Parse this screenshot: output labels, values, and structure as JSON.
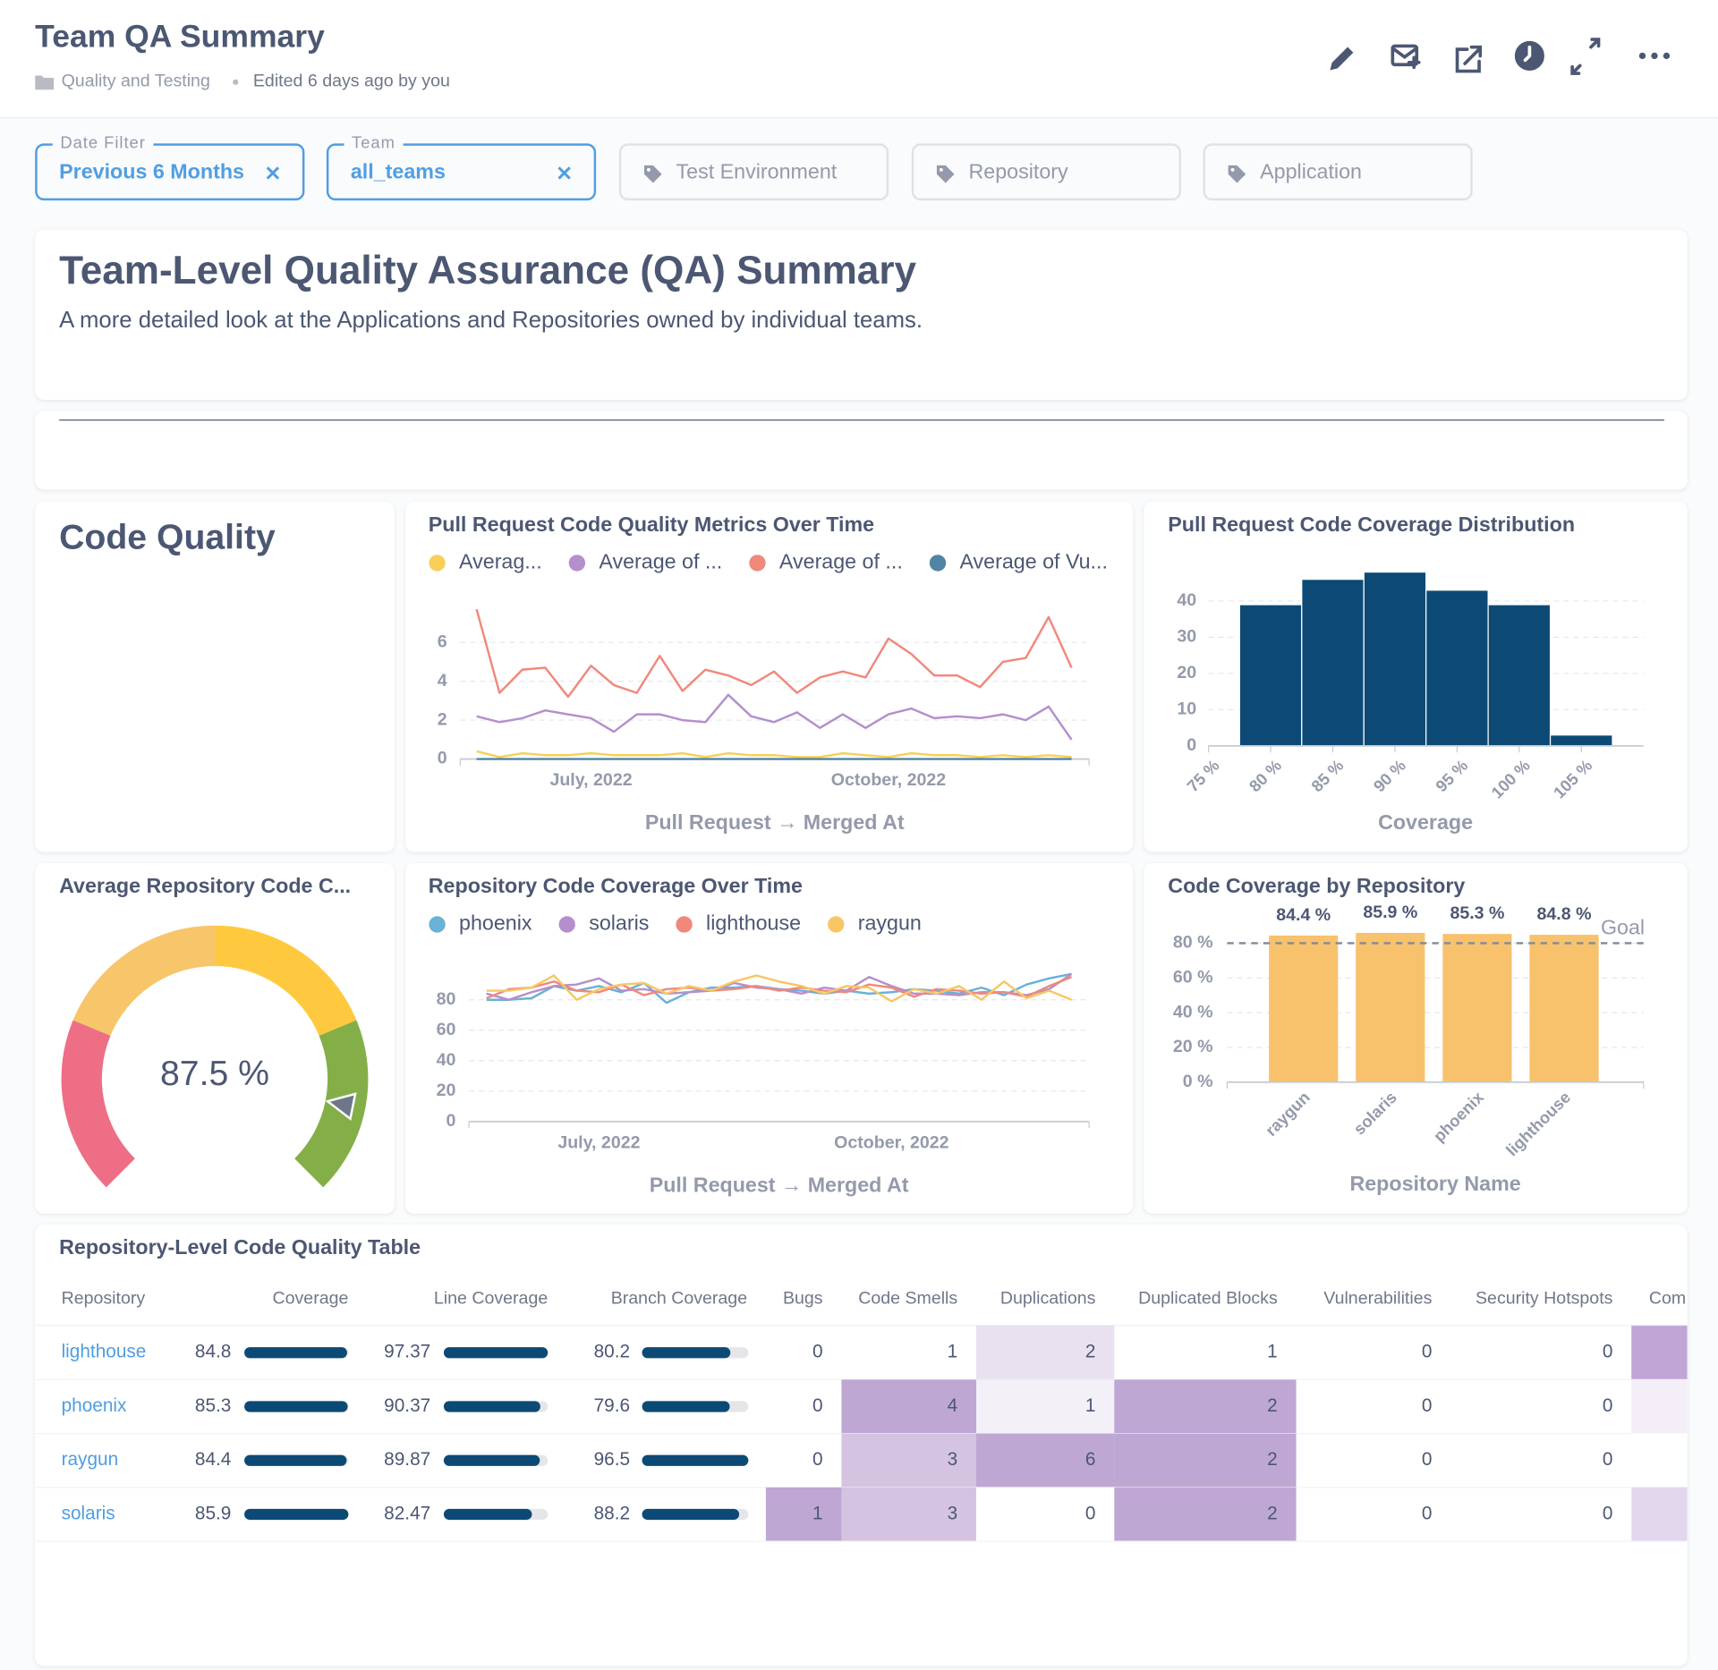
{
  "header": {
    "title": "Team QA Summary",
    "collection": "Quality and Testing",
    "edited": "Edited 6 days ago by you"
  },
  "filters": [
    {
      "label": "Date Filter",
      "value": "Previous 6 Months"
    },
    {
      "label": "Team",
      "value": "all_teams"
    },
    {
      "placeholder": "Test Environment"
    },
    {
      "placeholder": "Repository"
    },
    {
      "placeholder": "Application"
    }
  ],
  "intro": {
    "title": "Team-Level Quality Assurance (QA) Summary",
    "description": "A more detailed look at the Applications and Repositories owned by individual teams."
  },
  "section_title": "Code Quality",
  "chart_data": [
    {
      "type": "line",
      "title": "Pull Request Code Quality Metrics Over Time",
      "x_label": "Pull Request → Merged At",
      "categories": [
        null,
        null,
        null,
        null,
        null,
        "July, 2022",
        null,
        null,
        null,
        null,
        null,
        null,
        null,
        null,
        null,
        null,
        null,
        null,
        "October, 2022",
        null,
        null,
        null,
        null,
        null,
        null,
        null,
        null
      ],
      "ylim": [
        0,
        8
      ],
      "yticks": [
        0,
        2,
        4,
        6
      ],
      "grid": true,
      "series": [
        {
          "name": "Averag...",
          "color": "#f9cf5a",
          "values": [
            0.4,
            0.1,
            0.3,
            0.2,
            0.2,
            0.3,
            0.2,
            0.2,
            0.2,
            0.3,
            0.1,
            0.3,
            0.2,
            0.2,
            0.1,
            0.1,
            0.3,
            0.2,
            0.1,
            0.3,
            0.2,
            0.2,
            0.1,
            0.2,
            0.1,
            0.2,
            0.1
          ]
        },
        {
          "name": "Average of ...",
          "color": "#b48fcc",
          "values": [
            2.2,
            1.9,
            2.1,
            2.5,
            2.3,
            2.1,
            1.4,
            2.3,
            2.3,
            2.0,
            1.9,
            3.3,
            2.2,
            1.9,
            2.4,
            1.6,
            2.3,
            1.6,
            2.3,
            2.6,
            2.1,
            2.2,
            2.1,
            2.3,
            2.0,
            2.7,
            1.0
          ]
        },
        {
          "name": "Average of ...",
          "color": "#f1887c",
          "values": [
            7.7,
            3.4,
            4.6,
            4.7,
            3.2,
            4.8,
            3.8,
            3.4,
            5.3,
            3.5,
            4.6,
            4.3,
            3.8,
            4.5,
            3.4,
            4.2,
            4.5,
            4.2,
            6.2,
            5.4,
            4.3,
            4.3,
            3.7,
            5.0,
            5.2,
            7.3,
            4.7
          ]
        },
        {
          "name": "Average of Vu...",
          "color": "#4f85a3",
          "values": [
            0,
            0,
            0,
            0,
            0,
            0,
            0,
            0,
            0,
            0,
            0,
            0,
            0,
            0,
            0,
            0,
            0,
            0,
            0,
            0,
            0,
            0,
            0,
            0,
            0,
            0,
            0
          ]
        }
      ]
    },
    {
      "type": "histogram",
      "title": "Pull Request Code Coverage Distribution",
      "x_label": "Coverage",
      "bins": [
        77.5,
        82.5,
        87.5,
        92.5,
        97.5,
        102.5,
        107.5
      ],
      "values": [
        39,
        46,
        48,
        43,
        39,
        3
      ],
      "color": "#0c4a75",
      "xlim": [
        75,
        110
      ],
      "xticks": [
        {
          "value": 75,
          "label": "75 %"
        },
        {
          "value": 80,
          "label": "80 %"
        },
        {
          "value": 85,
          "label": "85 %"
        },
        {
          "value": 90,
          "label": "90 %"
        },
        {
          "value": 95,
          "label": "95 %"
        },
        {
          "value": 100,
          "label": "100 %"
        },
        {
          "value": 105,
          "label": "105 %"
        }
      ],
      "ylim": [
        0,
        49
      ],
      "yticks": [
        0,
        10,
        20,
        30,
        40
      ],
      "grid": true
    },
    {
      "type": "gauge",
      "title": "Average Repository Code C...",
      "value": 87.5,
      "value_label": "87.5 %",
      "segments": [
        {
          "min": 0,
          "max": 25,
          "color": "#ed6e85"
        },
        {
          "min": 25,
          "max": 50,
          "color": "#f7c56a"
        },
        {
          "min": 50,
          "max": 75,
          "color": "#ffc93f"
        },
        {
          "min": 75,
          "max": 100,
          "color": "#84af48"
        }
      ]
    },
    {
      "type": "line",
      "title": "Repository Code Coverage Over Time",
      "x_label": "Pull Request → Merged At",
      "categories": [
        null,
        null,
        null,
        null,
        null,
        "July, 2022",
        null,
        null,
        null,
        null,
        null,
        null,
        null,
        null,
        null,
        null,
        null,
        null,
        "October, 2022",
        null,
        null,
        null,
        null,
        null,
        null,
        null,
        null
      ],
      "ylim": [
        0,
        100
      ],
      "yticks": [
        0,
        20,
        40,
        60,
        80
      ],
      "grid": true,
      "series": [
        {
          "name": "phoenix",
          "color": "#69b1d6",
          "values": [
            80,
            80,
            81,
            89,
            86,
            89,
            85,
            91,
            78,
            85,
            88,
            88,
            89,
            87,
            86,
            84,
            86,
            84,
            85,
            87,
            86,
            84,
            88,
            83,
            90,
            94,
            97
          ]
        },
        {
          "name": "solaris",
          "color": "#b48fcc",
          "values": [
            84,
            80,
            85,
            89,
            90,
            94,
            86,
            87,
            84,
            85,
            86,
            91,
            88,
            87,
            84,
            88,
            86,
            95,
            89,
            84,
            84,
            83,
            85,
            85,
            83,
            87,
            97
          ]
        },
        {
          "name": "lighthouse",
          "color": "#f1887c",
          "values": [
            81,
            87,
            88,
            92,
            86,
            85,
            90,
            83,
            87,
            88,
            86,
            87,
            89,
            86,
            88,
            86,
            85,
            90,
            88,
            82,
            87,
            86,
            84,
            85,
            82,
            89,
            95
          ]
        },
        {
          "name": "raygun",
          "color": "#f7c765",
          "values": [
            86,
            86,
            88,
            96,
            80,
            87,
            90,
            91,
            84,
            89,
            86,
            92,
            96,
            92,
            89,
            84,
            89,
            88,
            79,
            87,
            84,
            89,
            80,
            92,
            81,
            86,
            80
          ]
        }
      ]
    },
    {
      "type": "bar",
      "title": "Code Coverage by Repository",
      "x_label": "Repository Name",
      "categories": [
        "raygun",
        "solaris",
        "phoenix",
        "lighthouse"
      ],
      "values": [
        84.4,
        85.9,
        85.3,
        84.8
      ],
      "value_labels": [
        "84.4 %",
        "85.9 %",
        "85.3 %",
        "84.8 %"
      ],
      "color": "#f8c16b",
      "goal": {
        "value": 80,
        "label": "Goal"
      },
      "ylim": [
        0,
        87
      ],
      "yticks": [
        {
          "value": 0,
          "label": "0 %"
        },
        {
          "value": 20,
          "label": "20 %"
        },
        {
          "value": 40,
          "label": "40 %"
        },
        {
          "value": 60,
          "label": "60 %"
        },
        {
          "value": 80,
          "label": "80 %"
        }
      ],
      "grid": true
    }
  ],
  "table": {
    "title": "Repository-Level Code Quality Table",
    "columns": [
      "Repository",
      "Coverage",
      "Line Coverage",
      "Branch Coverage",
      "Bugs",
      "Code Smells",
      "Duplications",
      "Duplicated Blocks",
      "Vulnerabilities",
      "Security Hotspots"
    ],
    "truncated_column": "Com",
    "rows": [
      [
        "lighthouse",
        84.8,
        97.37,
        80.2,
        0,
        1,
        2,
        1,
        0,
        0
      ],
      [
        "phoenix",
        85.3,
        90.37,
        79.6,
        0,
        4,
        1,
        2,
        0,
        0
      ],
      [
        "raygun",
        84.4,
        89.87,
        96.5,
        0,
        3,
        6,
        2,
        0,
        0
      ],
      [
        "solaris",
        85.9,
        82.47,
        88.2,
        1,
        3,
        0,
        2,
        0,
        0
      ]
    ]
  }
}
